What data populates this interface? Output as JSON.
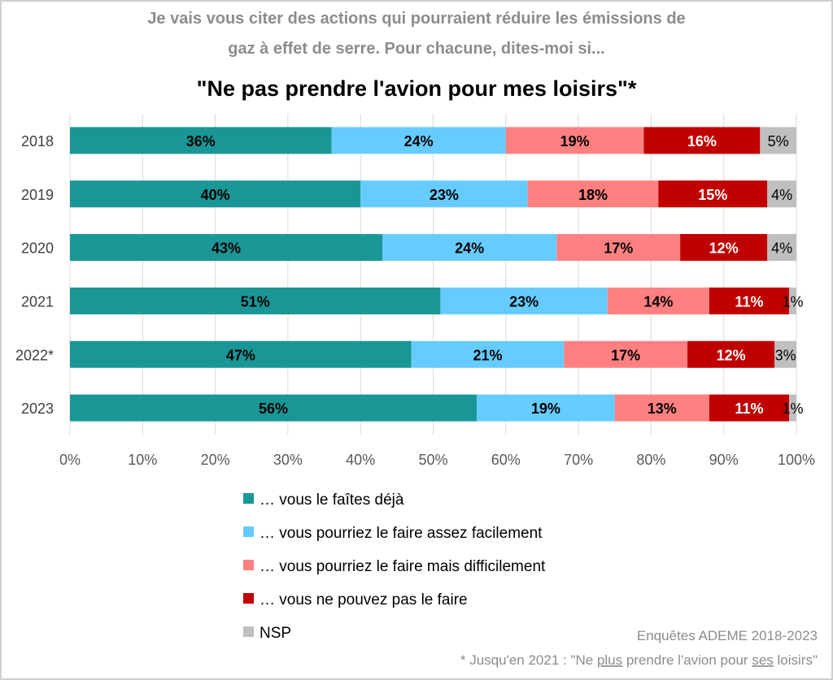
{
  "chart_data": {
    "type": "bar",
    "orientation": "horizontal",
    "stacked": true,
    "subtitle_lines": [
      "Je vais vous citer des actions qui pourraient réduire les émissions de",
      "gaz à effet de serre. Pour chacune, dites-moi si..."
    ],
    "title": "\"Ne pas prendre l'avion pour mes loisirs\"*",
    "categories": [
      "2018",
      "2019",
      "2020",
      "2021",
      "2022*",
      "2023"
    ],
    "series": [
      {
        "name": "… vous le faîtes déjà",
        "color": "#1a9696",
        "values": [
          36,
          40,
          43,
          51,
          47,
          56
        ]
      },
      {
        "name": "… vous pourriez le faire assez facilement",
        "color": "#66ccff",
        "values": [
          24,
          23,
          24,
          23,
          21,
          19
        ]
      },
      {
        "name": "… vous pourriez le faire mais difficilement",
        "color": "#ff8080",
        "values": [
          19,
          18,
          17,
          14,
          17,
          13
        ]
      },
      {
        "name": "… vous ne pouvez pas le faire",
        "color": "#c00000",
        "values": [
          16,
          15,
          12,
          11,
          12,
          11
        ]
      },
      {
        "name": "NSP",
        "color": "#bfbfbf",
        "values": [
          5,
          4,
          4,
          1,
          3,
          1
        ]
      }
    ],
    "xlim": [
      0,
      100
    ],
    "x_ticks": [
      "0%",
      "10%",
      "20%",
      "30%",
      "40%",
      "50%",
      "60%",
      "70%",
      "80%",
      "90%",
      "100%"
    ],
    "grid": "vertical",
    "legend_position": "bottom",
    "source": "Enquêtes ADEME 2018-2023",
    "footnote_parts": [
      "* Jusqu'en 2021 : \"Ne ",
      "plus",
      " prendre l'avion pour ",
      "ses",
      " loisirs\""
    ]
  }
}
